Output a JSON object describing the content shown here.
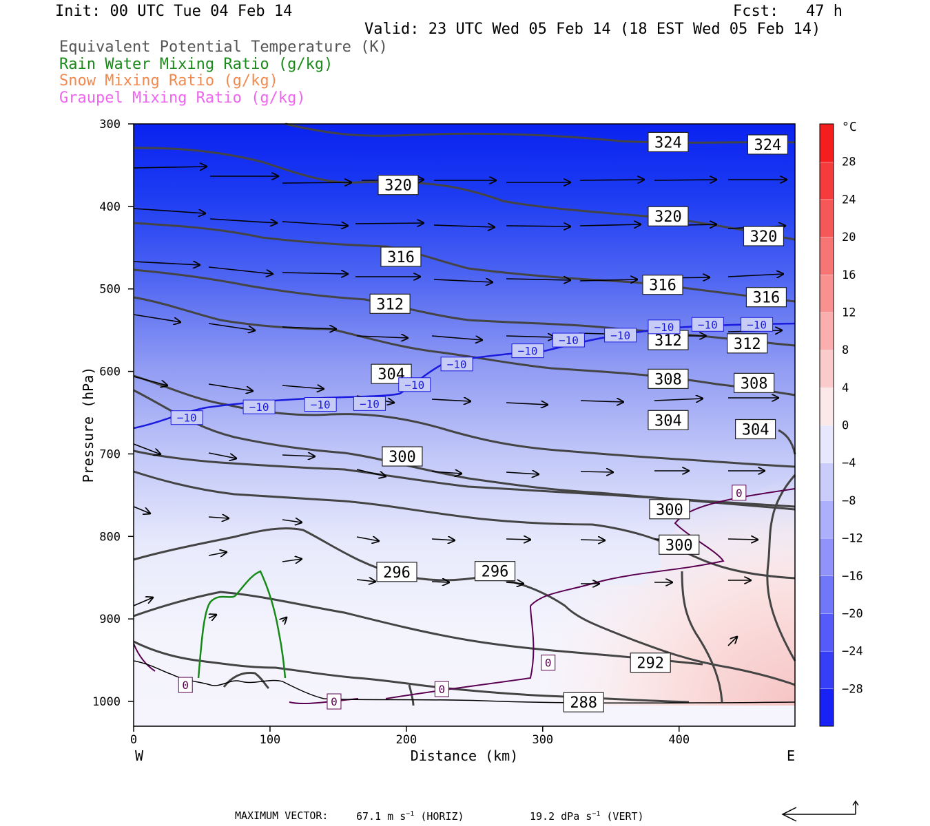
{
  "header": {
    "init": "Init: 00 UTC Tue 04 Feb 14",
    "fcst": "Fcst:   47 h",
    "valid": "Valid: 23 UTC Wed 05 Feb 14 (18 EST Wed 05 Feb 14)",
    "fields": [
      {
        "label": "Equivalent Potential Temperature (K)",
        "color": "#555555"
      },
      {
        "label": "Rain Water Mixing Ratio (g/kg)",
        "color": "#1a8a1a"
      },
      {
        "label": "Snow Mixing Ratio (g/kg)",
        "color": "#f08a50"
      },
      {
        "label": "Graupel Mixing Ratio (g/kg)",
        "color": "#ee66ee"
      }
    ]
  },
  "chart_data": {
    "type": "cross-section",
    "xlabel": "Distance (km)",
    "ylabel": "Pressure (hPa)",
    "xlim": [
      0,
      485
    ],
    "ylim": [
      1030,
      300
    ],
    "x_ticks": [
      0,
      100,
      200,
      300,
      400
    ],
    "y_ticks": [
      300,
      400,
      500,
      600,
      700,
      800,
      900,
      1000
    ],
    "x_end_labels": {
      "left": "W",
      "right": "E"
    },
    "colorbar": {
      "unit": "°C",
      "tick_labels": [
        "28",
        "24",
        "20",
        "16",
        "12",
        "8",
        "4",
        "0",
        "−4",
        "−8",
        "−12",
        "−16",
        "−20",
        "−24",
        "−28"
      ],
      "tick_values": [
        28,
        24,
        20,
        16,
        12,
        8,
        4,
        0,
        -4,
        -8,
        -12,
        -16,
        -20,
        -24,
        -28
      ],
      "range": [
        -32,
        32
      ]
    },
    "theta_e_labels": [
      {
        "text": "324",
        "x": 392,
        "p": 322
      },
      {
        "text": "324",
        "x": 465,
        "p": 325
      },
      {
        "text": "320",
        "x": 194,
        "p": 374
      },
      {
        "text": "320",
        "x": 392,
        "p": 412
      },
      {
        "text": "320",
        "x": 462,
        "p": 436
      },
      {
        "text": "316",
        "x": 196,
        "p": 461
      },
      {
        "text": "316",
        "x": 388,
        "p": 495
      },
      {
        "text": "316",
        "x": 464,
        "p": 510
      },
      {
        "text": "312",
        "x": 188,
        "p": 518
      },
      {
        "text": "312",
        "x": 392,
        "p": 562
      },
      {
        "text": "312",
        "x": 450,
        "p": 566
      },
      {
        "text": "308",
        "x": 392,
        "p": 609
      },
      {
        "text": "308",
        "x": 455,
        "p": 614
      },
      {
        "text": "304",
        "x": 189,
        "p": 603
      },
      {
        "text": "304",
        "x": 392,
        "p": 659
      },
      {
        "text": "304",
        "x": 456,
        "p": 670
      },
      {
        "text": "300",
        "x": 197,
        "p": 703
      },
      {
        "text": "300",
        "x": 393,
        "p": 767
      },
      {
        "text": "300",
        "x": 400,
        "p": 810
      },
      {
        "text": "296",
        "x": 193,
        "p": 843
      },
      {
        "text": "296",
        "x": 265,
        "p": 842
      },
      {
        "text": "292",
        "x": 379,
        "p": 953
      },
      {
        "text": "288",
        "x": 330,
        "p": 1001
      }
    ],
    "temp_labels": [
      {
        "text": "−10",
        "x": 39,
        "p": 656
      },
      {
        "text": "−10",
        "x": 92,
        "p": 643
      },
      {
        "text": "−10",
        "x": 137,
        "p": 640
      },
      {
        "text": "−10",
        "x": 173,
        "p": 639
      },
      {
        "text": "−10",
        "x": 206,
        "p": 616
      },
      {
        "text": "−10",
        "x": 237,
        "p": 591
      },
      {
        "text": "−10",
        "x": 289,
        "p": 575
      },
      {
        "text": "−10",
        "x": 319,
        "p": 562
      },
      {
        "text": "−10",
        "x": 357,
        "p": 556
      },
      {
        "text": "−10",
        "x": 389,
        "p": 546
      },
      {
        "text": "−10",
        "x": 421,
        "p": 543
      },
      {
        "text": "−10",
        "x": 457,
        "p": 543
      },
      {
        "text": "0",
        "x": 38,
        "p": 980
      },
      {
        "text": "0",
        "x": 147,
        "p": 1000
      },
      {
        "text": "0",
        "x": 226,
        "p": 985
      },
      {
        "text": "0",
        "x": 304,
        "p": 953
      },
      {
        "text": "0",
        "x": 444,
        "p": 747
      }
    ]
  },
  "footer": {
    "max_vector_label": "MAXIMUM VECTOR:",
    "horiz": "67.1 m s",
    "horiz_sup": "−1",
    "horiz_tag": "(HORIZ)",
    "vert": "19.2 dPa s",
    "vert_sup": "−1",
    "vert_tag": "(VERT)"
  }
}
